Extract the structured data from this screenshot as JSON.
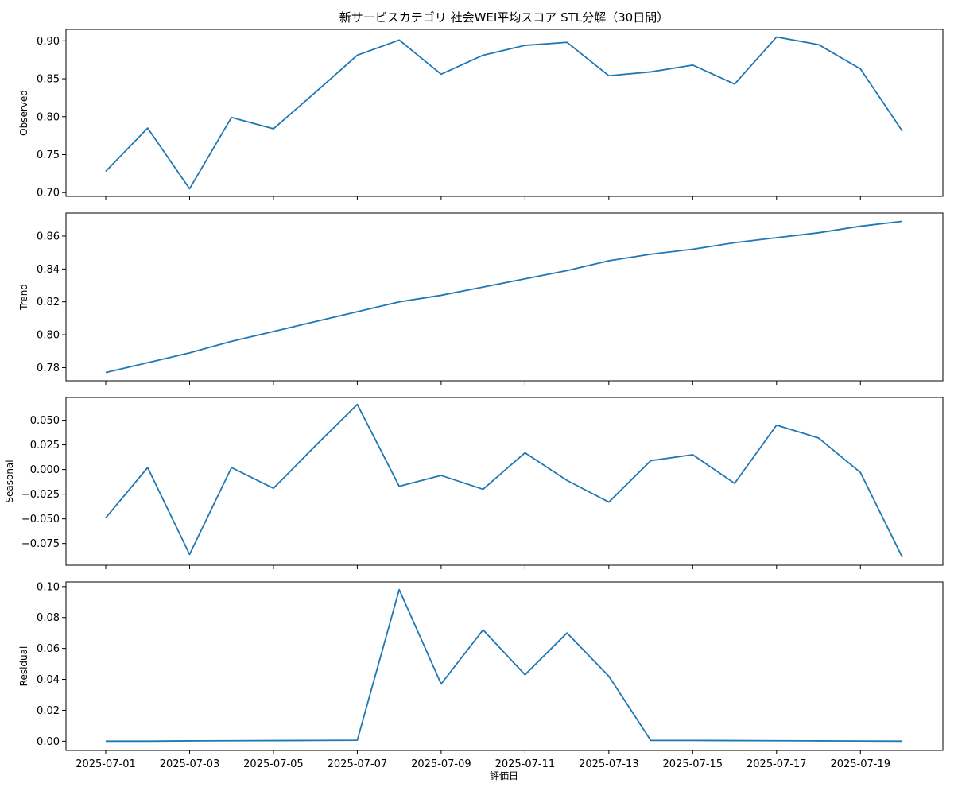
{
  "chart_data": {
    "type": "line",
    "title": "新サービスカテゴリ 社会WEI平均スコア STL分解（30日間）",
    "xlabel": "評価日",
    "x": [
      "2025-07-01",
      "2025-07-02",
      "2025-07-03",
      "2025-07-04",
      "2025-07-05",
      "2025-07-06",
      "2025-07-07",
      "2025-07-08",
      "2025-07-09",
      "2025-07-10",
      "2025-07-11",
      "2025-07-12",
      "2025-07-13",
      "2025-07-14",
      "2025-07-15",
      "2025-07-16",
      "2025-07-17",
      "2025-07-18",
      "2025-07-19",
      "2025-07-20"
    ],
    "x_tick_labels": [
      "2025-07-01",
      "2025-07-03",
      "2025-07-05",
      "2025-07-07",
      "2025-07-09",
      "2025-07-11",
      "2025-07-13",
      "2025-07-15",
      "2025-07-17",
      "2025-07-19"
    ],
    "line_color": "#1f77b4",
    "grid": false,
    "panels": [
      {
        "ylabel": "Observed",
        "ylim": [
          0.695,
          0.915
        ],
        "yticks": [
          0.7,
          0.75,
          0.8,
          0.85,
          0.9
        ],
        "tick_labels": [
          "0.70",
          "0.75",
          "0.80",
          "0.85",
          "0.90"
        ],
        "values": [
          0.728,
          0.785,
          0.705,
          0.799,
          0.784,
          0.832,
          0.881,
          0.901,
          0.856,
          0.881,
          0.894,
          0.898,
          0.854,
          0.859,
          0.868,
          0.843,
          0.905,
          0.895,
          0.863,
          0.781
        ]
      },
      {
        "ylabel": "Trend",
        "ylim": [
          0.772,
          0.874
        ],
        "yticks": [
          0.78,
          0.8,
          0.82,
          0.84,
          0.86
        ],
        "tick_labels": [
          "0.78",
          "0.80",
          "0.82",
          "0.84",
          "0.86"
        ],
        "values": [
          0.777,
          0.783,
          0.789,
          0.796,
          0.802,
          0.808,
          0.814,
          0.82,
          0.824,
          0.829,
          0.834,
          0.839,
          0.845,
          0.849,
          0.852,
          0.856,
          0.859,
          0.862,
          0.866,
          0.869
        ]
      },
      {
        "ylabel": "Seasonal",
        "ylim": [
          -0.097,
          0.073
        ],
        "yticks": [
          -0.075,
          -0.05,
          -0.025,
          0.0,
          0.025,
          0.05
        ],
        "tick_labels": [
          "−0.075",
          "−0.050",
          "−0.025",
          "0.000",
          "0.025",
          "0.050"
        ],
        "values": [
          -0.049,
          0.002,
          -0.086,
          0.002,
          -0.019,
          0.024,
          0.066,
          -0.017,
          -0.006,
          -0.02,
          0.017,
          -0.011,
          -0.033,
          0.009,
          0.015,
          -0.014,
          0.045,
          0.032,
          -0.003,
          -0.089
        ]
      },
      {
        "ylabel": "Residual",
        "ylim": [
          -0.006,
          0.103
        ],
        "yticks": [
          0.0,
          0.02,
          0.04,
          0.06,
          0.08,
          0.1
        ],
        "tick_labels": [
          "0.00",
          "0.02",
          "0.04",
          "0.06",
          "0.08",
          "0.10"
        ],
        "values": [
          0.0,
          0.0,
          0.0002,
          0.0003,
          0.0004,
          0.0005,
          0.0006,
          0.098,
          0.037,
          0.072,
          0.043,
          0.07,
          0.042,
          0.0005,
          0.0005,
          0.0004,
          0.0003,
          0.0002,
          0.0001,
          0.0
        ]
      }
    ]
  }
}
